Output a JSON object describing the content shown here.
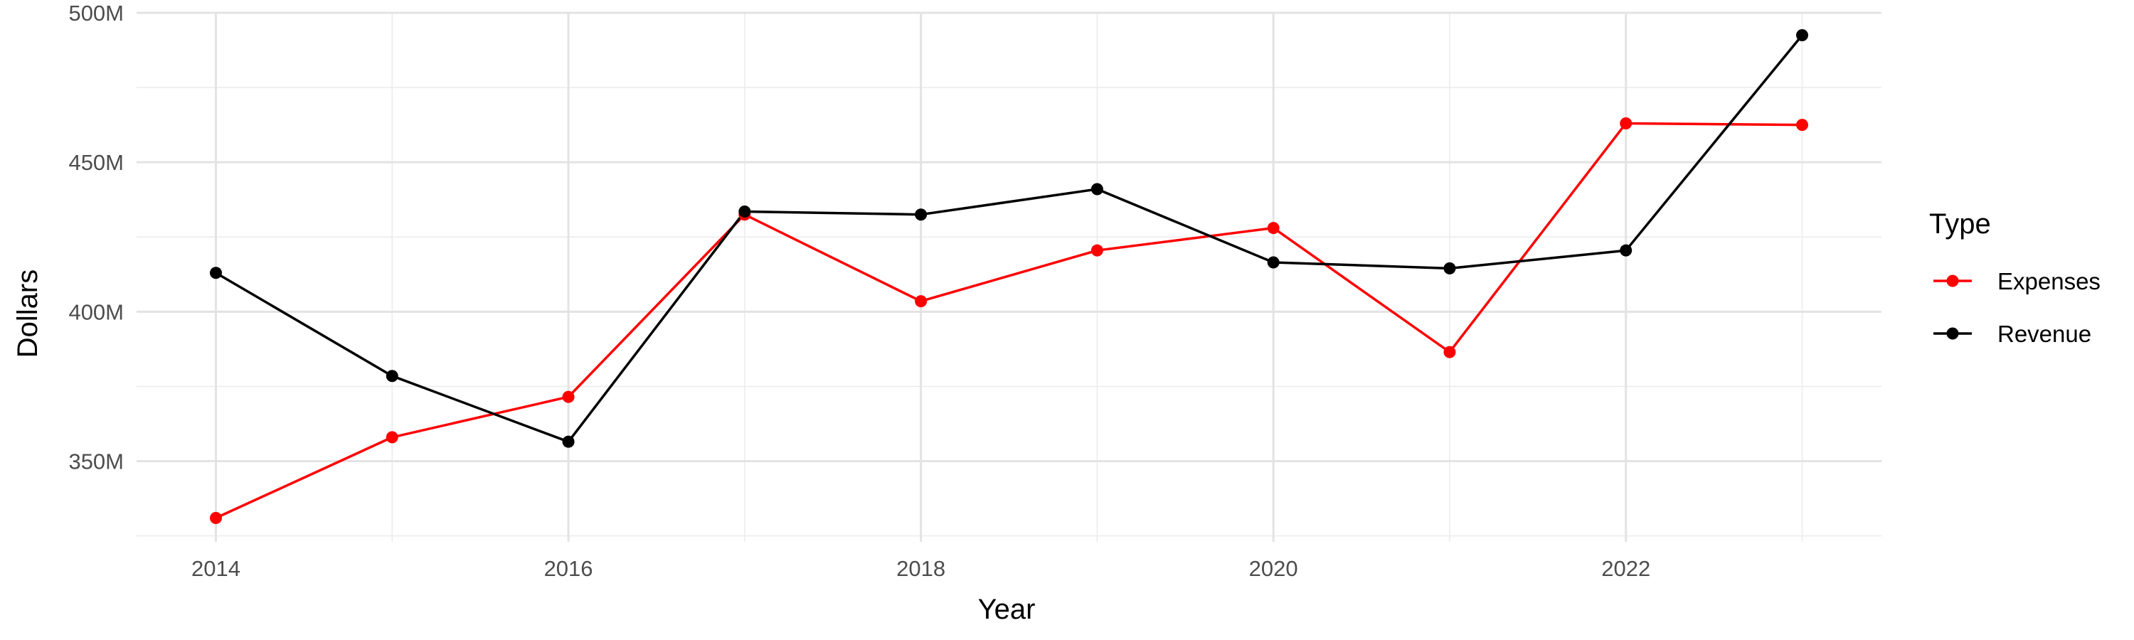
{
  "chart_data": {
    "type": "line",
    "xlabel": "Year",
    "ylabel": "Dollars",
    "x": [
      2014,
      2015,
      2016,
      2017,
      2018,
      2019,
      2020,
      2021,
      2022,
      2023
    ],
    "x_ticks": [
      "2014",
      "2016",
      "2018",
      "2020",
      "2022"
    ],
    "y_ticks": [
      "350M",
      "400M",
      "450M",
      "500M"
    ],
    "ylim": [
      323000000,
      500000000
    ],
    "xlim": [
      2013.55,
      2023.45
    ],
    "grid": true,
    "legend": {
      "title": "Type",
      "position": "right",
      "entries": [
        "Expenses",
        "Revenue"
      ]
    },
    "series": [
      {
        "name": "Expenses",
        "color": "#ff0000",
        "values": [
          331000000,
          358000000,
          371500000,
          432500000,
          403500000,
          420500000,
          428000000,
          386500000,
          463000000,
          462500000
        ]
      },
      {
        "name": "Revenue",
        "color": "#000000",
        "values": [
          413000000,
          378500000,
          356500000,
          433500000,
          432500000,
          441000000,
          416500000,
          414500000,
          420500000,
          492500000
        ]
      }
    ]
  }
}
